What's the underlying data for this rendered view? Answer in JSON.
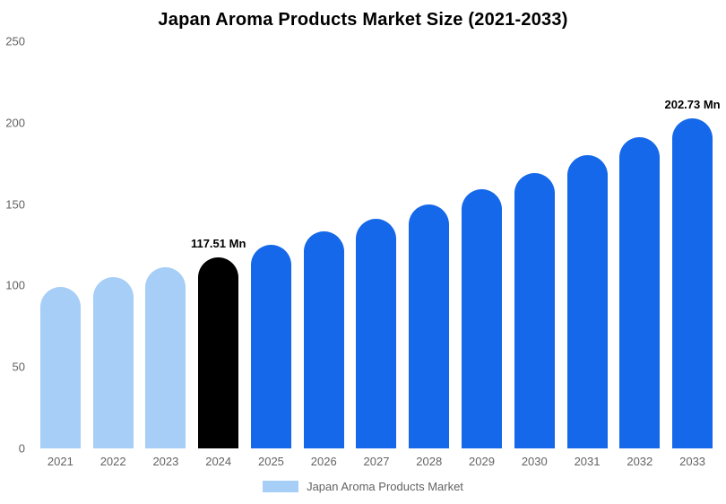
{
  "chart_data": {
    "type": "bar",
    "title": "Japan Aroma Products Market Size (2021-2033)",
    "categories": [
      "2021",
      "2022",
      "2023",
      "2024",
      "2025",
      "2026",
      "2027",
      "2028",
      "2029",
      "2030",
      "2031",
      "2032",
      "2033"
    ],
    "values": [
      99,
      105,
      111,
      117.51,
      125,
      133,
      141,
      150,
      159,
      169,
      180,
      191,
      202.73
    ],
    "bar_colors": [
      "#A6CEF7",
      "#A6CEF7",
      "#A6CEF7",
      "#000000",
      "#1468E9",
      "#1468E9",
      "#1468E9",
      "#1468E9",
      "#1468E9",
      "#1468E9",
      "#1468E9",
      "#1468E9",
      "#1468E9"
    ],
    "annotations": [
      {
        "index": 3,
        "text": "117.51 Mn"
      },
      {
        "index": 12,
        "text": "202.73 Mn"
      }
    ],
    "xlabel": "",
    "ylabel": "",
    "ylim": [
      0,
      250
    ],
    "yticks": [
      0,
      50,
      100,
      150,
      200,
      250
    ],
    "grid": false,
    "legend_position": "bottom",
    "legend": [
      {
        "label": "Japan Aroma Products Market",
        "color": "#A6CEF7"
      }
    ]
  }
}
